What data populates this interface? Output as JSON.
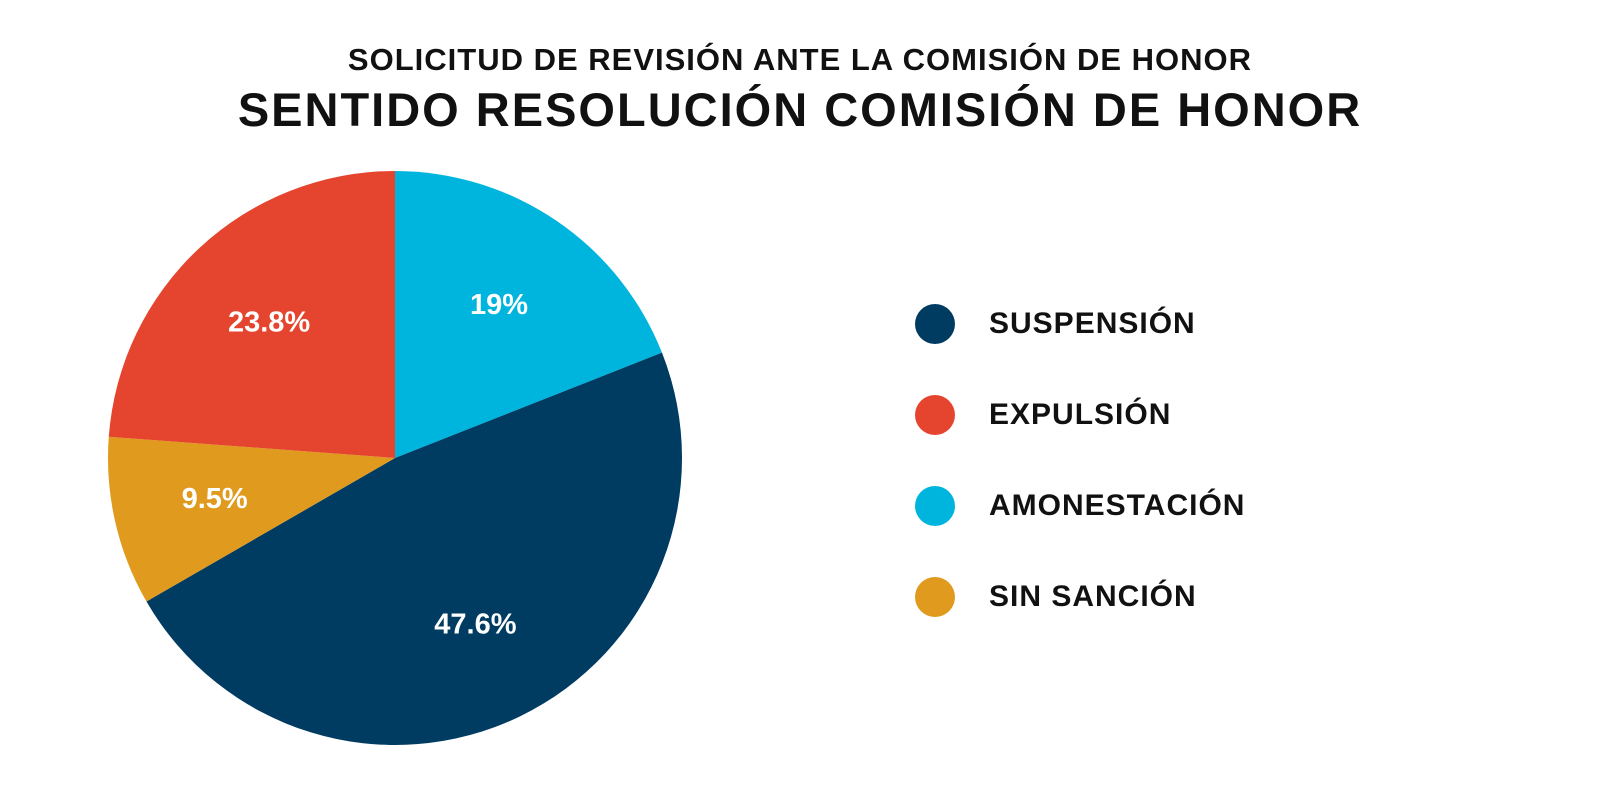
{
  "chart_data": {
    "type": "pie",
    "subtitle": "SOLICITUD DE REVISIÓN ANTE LA COMISIÓN DE HONOR",
    "title": "SENTIDO RESOLUCIÓN COMISIÓN DE HONOR",
    "legend_position": "right",
    "slices": [
      {
        "name": "AMONESTACIÓN",
        "value": 19,
        "label": "19%",
        "color": "#00b5dd"
      },
      {
        "name": "SUSPENSIÓN",
        "value": 47.6,
        "label": "47.6%",
        "color": "#003b62"
      },
      {
        "name": "SIN SANCIÓN",
        "value": 9.5,
        "label": "9.5%",
        "color": "#e09a1e"
      },
      {
        "name": "EXPULSIÓN",
        "value": 23.8,
        "label": "23.8%",
        "color": "#e5452e"
      }
    ],
    "legend": [
      {
        "name": "SUSPENSIÓN",
        "color": "#003b62"
      },
      {
        "name": "EXPULSIÓN",
        "color": "#e5452e"
      },
      {
        "name": "AMONESTACIÓN",
        "color": "#00b5dd"
      },
      {
        "name": "SIN SANCIÓN",
        "color": "#e09a1e"
      }
    ]
  }
}
